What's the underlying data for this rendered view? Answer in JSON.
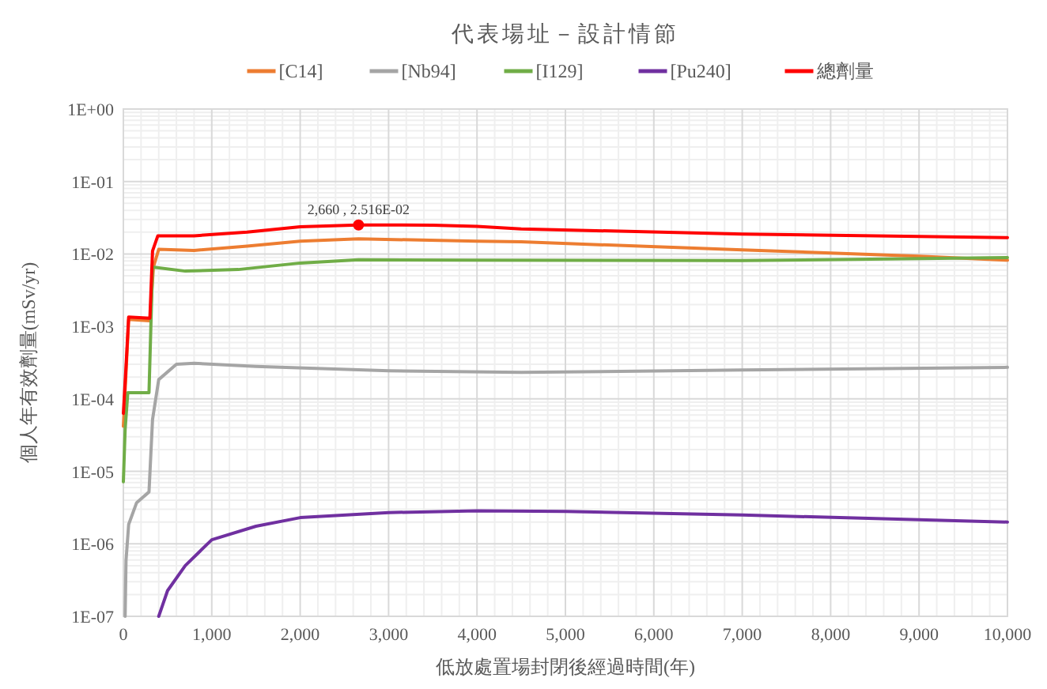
{
  "chart_data": {
    "type": "line",
    "title": "代表場址－設計情節",
    "xlabel": "低放處置場封閉後經過時間(年)",
    "ylabel": "個人年有效劑量(mSv/yr)",
    "log": "y",
    "grid": true,
    "legend": "top",
    "marker": "none",
    "line_style": "solid",
    "xlim": [
      0,
      10000
    ],
    "ylim": [
      1e-07,
      1
    ],
    "xticks": [
      0,
      {
        "value": 1000,
        "label": "1,000"
      },
      {
        "value": 2000,
        "label": "2,000"
      },
      {
        "value": 3000,
        "label": "3,000"
      },
      {
        "value": 4000,
        "label": "4,000"
      },
      {
        "value": 5000,
        "label": "5,000"
      },
      {
        "value": 6000,
        "label": "6,000"
      },
      {
        "value": 7000,
        "label": "7,000"
      },
      {
        "value": 8000,
        "label": "8,000"
      },
      {
        "value": 9000,
        "label": "9,000"
      },
      {
        "value": 10000,
        "label": "10,000"
      }
    ],
    "yticks": [
      {
        "value": 1e-07,
        "label": "1E-07"
      },
      {
        "value": 1e-06,
        "label": "1E-06"
      },
      {
        "value": 1e-05,
        "label": "1E-05"
      },
      {
        "value": 0.0001,
        "label": "1E-04"
      },
      {
        "value": 0.001,
        "label": "1E-03"
      },
      {
        "value": 0.01,
        "label": "1E-02"
      },
      {
        "value": 0.1,
        "label": "1E-01"
      },
      {
        "value": 1,
        "label": "1E+00"
      }
    ],
    "annotations": [
      {
        "text": "2,660 , 2.516E-02",
        "x": 2660,
        "y": 0.02516
      }
    ],
    "series": [
      {
        "name": "[C14]",
        "color": "#ed7d31",
        "x": [
          0,
          30,
          60,
          300,
          340,
          400,
          800,
          1400,
          2000,
          2660,
          4000,
          4500,
          7000,
          9000,
          10000
        ],
        "values": [
          4.2e-05,
          0.00023,
          0.00125,
          0.0012,
          0.0066,
          0.0116,
          0.0112,
          0.0128,
          0.015,
          0.0162,
          0.015,
          0.0147,
          0.0114,
          0.0093,
          0.0082
        ]
      },
      {
        "name": "[Nb94]",
        "color": "#a5a5a5",
        "x": [
          20,
          30,
          60,
          150,
          290,
          330,
          400,
          600,
          800,
          1500,
          3000,
          4500,
          7000,
          10000
        ],
        "values": [
          1e-07,
          5.9e-07,
          1.85e-06,
          3.7e-06,
          5.2e-06,
          5.2e-05,
          0.000185,
          0.0003,
          0.00031,
          0.00028,
          0.000245,
          0.000232,
          0.00025,
          0.000273
        ]
      },
      {
        "name": "[I129]",
        "color": "#70ad47",
        "x": [
          0,
          20,
          50,
          290,
          310,
          330,
          700,
          1300,
          2000,
          2660,
          4000,
          7000,
          10000
        ],
        "values": [
          7.2e-06,
          3.8e-05,
          0.000122,
          0.000122,
          0.00089,
          0.0066,
          0.0058,
          0.0061,
          0.0075,
          0.0083,
          0.0082,
          0.0081,
          0.0089
        ]
      },
      {
        "name": "[Pu240]",
        "color": "#7030a0",
        "x": [
          400,
          500,
          700,
          1000,
          1500,
          2000,
          3000,
          4000,
          5000,
          7000,
          10000
        ],
        "values": [
          1e-07,
          2.26e-07,
          5e-07,
          1.14e-06,
          1.75e-06,
          2.3e-06,
          2.7e-06,
          2.85e-06,
          2.8e-06,
          2.5e-06,
          2e-06
        ]
      },
      {
        "name": "總劑量",
        "color": "#ff0000",
        "x": [
          0,
          30,
          60,
          300,
          330,
          390,
          800,
          1400,
          2000,
          2660,
          3500,
          4000,
          4500,
          7000,
          10000
        ],
        "values": [
          6.3e-05,
          0.00028,
          0.00135,
          0.0013,
          0.011,
          0.0178,
          0.0178,
          0.02,
          0.0237,
          0.02516,
          0.025,
          0.024,
          0.0222,
          0.0188,
          0.0168
        ]
      }
    ]
  }
}
